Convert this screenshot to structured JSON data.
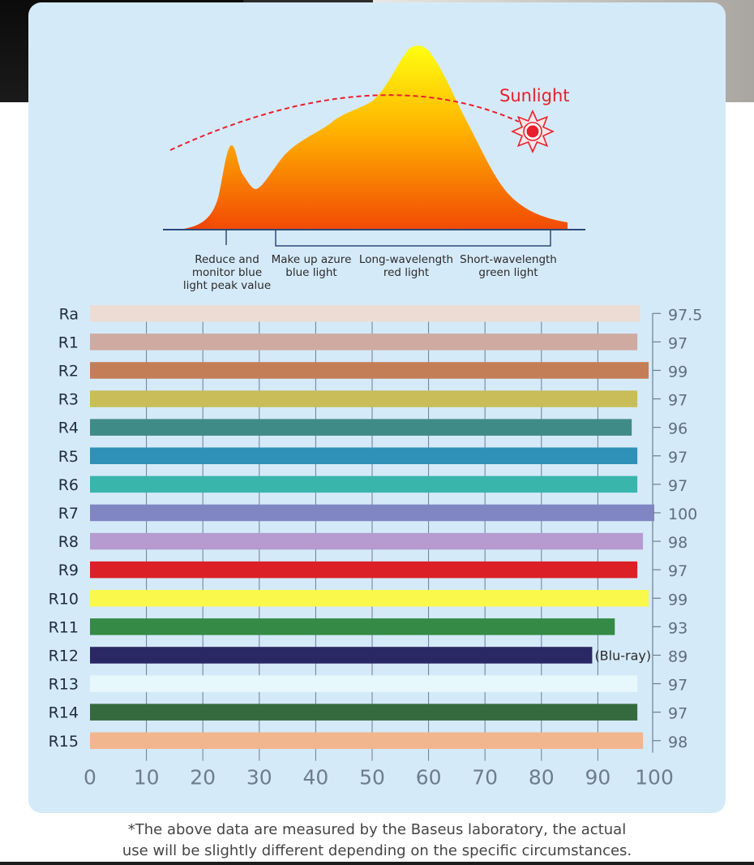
{
  "spectrum": {
    "sunlight_label": "Sunlight",
    "regions": [
      "Reduce and\nmonitor blue\nlight peak value",
      "Make up azure\nblue light",
      "Long-wavelength\nred light",
      "Short-wavelength\ngreen light"
    ]
  },
  "chart_data": {
    "type": "bar",
    "orientation": "horizontal",
    "title": "",
    "xlabel": "",
    "ylabel": "",
    "xlim": [
      0,
      100
    ],
    "x_ticks": [
      "0",
      "10",
      "20",
      "30",
      "40",
      "50",
      "60",
      "70",
      "80",
      "90",
      "100"
    ],
    "categories": [
      "Ra",
      "R1",
      "R2",
      "R3",
      "R4",
      "R5",
      "R6",
      "R7",
      "R8",
      "R9",
      "R10",
      "R11",
      "R12",
      "R13",
      "R14",
      "R15"
    ],
    "values": [
      97.5,
      97,
      99,
      97,
      96,
      97,
      97,
      100,
      98,
      97,
      99,
      93,
      89,
      97,
      97,
      98
    ],
    "value_labels": [
      "97.5",
      "97",
      "99",
      "97",
      "96",
      "97",
      "97",
      "100",
      "98",
      "97",
      "99",
      "93",
      "89",
      "97",
      "97",
      "98"
    ],
    "colors": [
      "#ecdcd4",
      "#cfaaa0",
      "#c47e57",
      "#c8bd58",
      "#3f8b88",
      "#2f90b8",
      "#3ab5ac",
      "#7f86c2",
      "#b59bcf",
      "#dc2027",
      "#faf84a",
      "#358a46",
      "#2a2864",
      "#e6f8fc",
      "#356a3e",
      "#f2b68f"
    ],
    "annotations": [
      {
        "category": "R12",
        "text": "(Blu-ray)"
      }
    ],
    "grid": true
  },
  "footnote": {
    "line1": "*The above data are measured by the Baseus laboratory, the actual",
    "line2": "use will be slightly different depending on the specific circumstances."
  }
}
